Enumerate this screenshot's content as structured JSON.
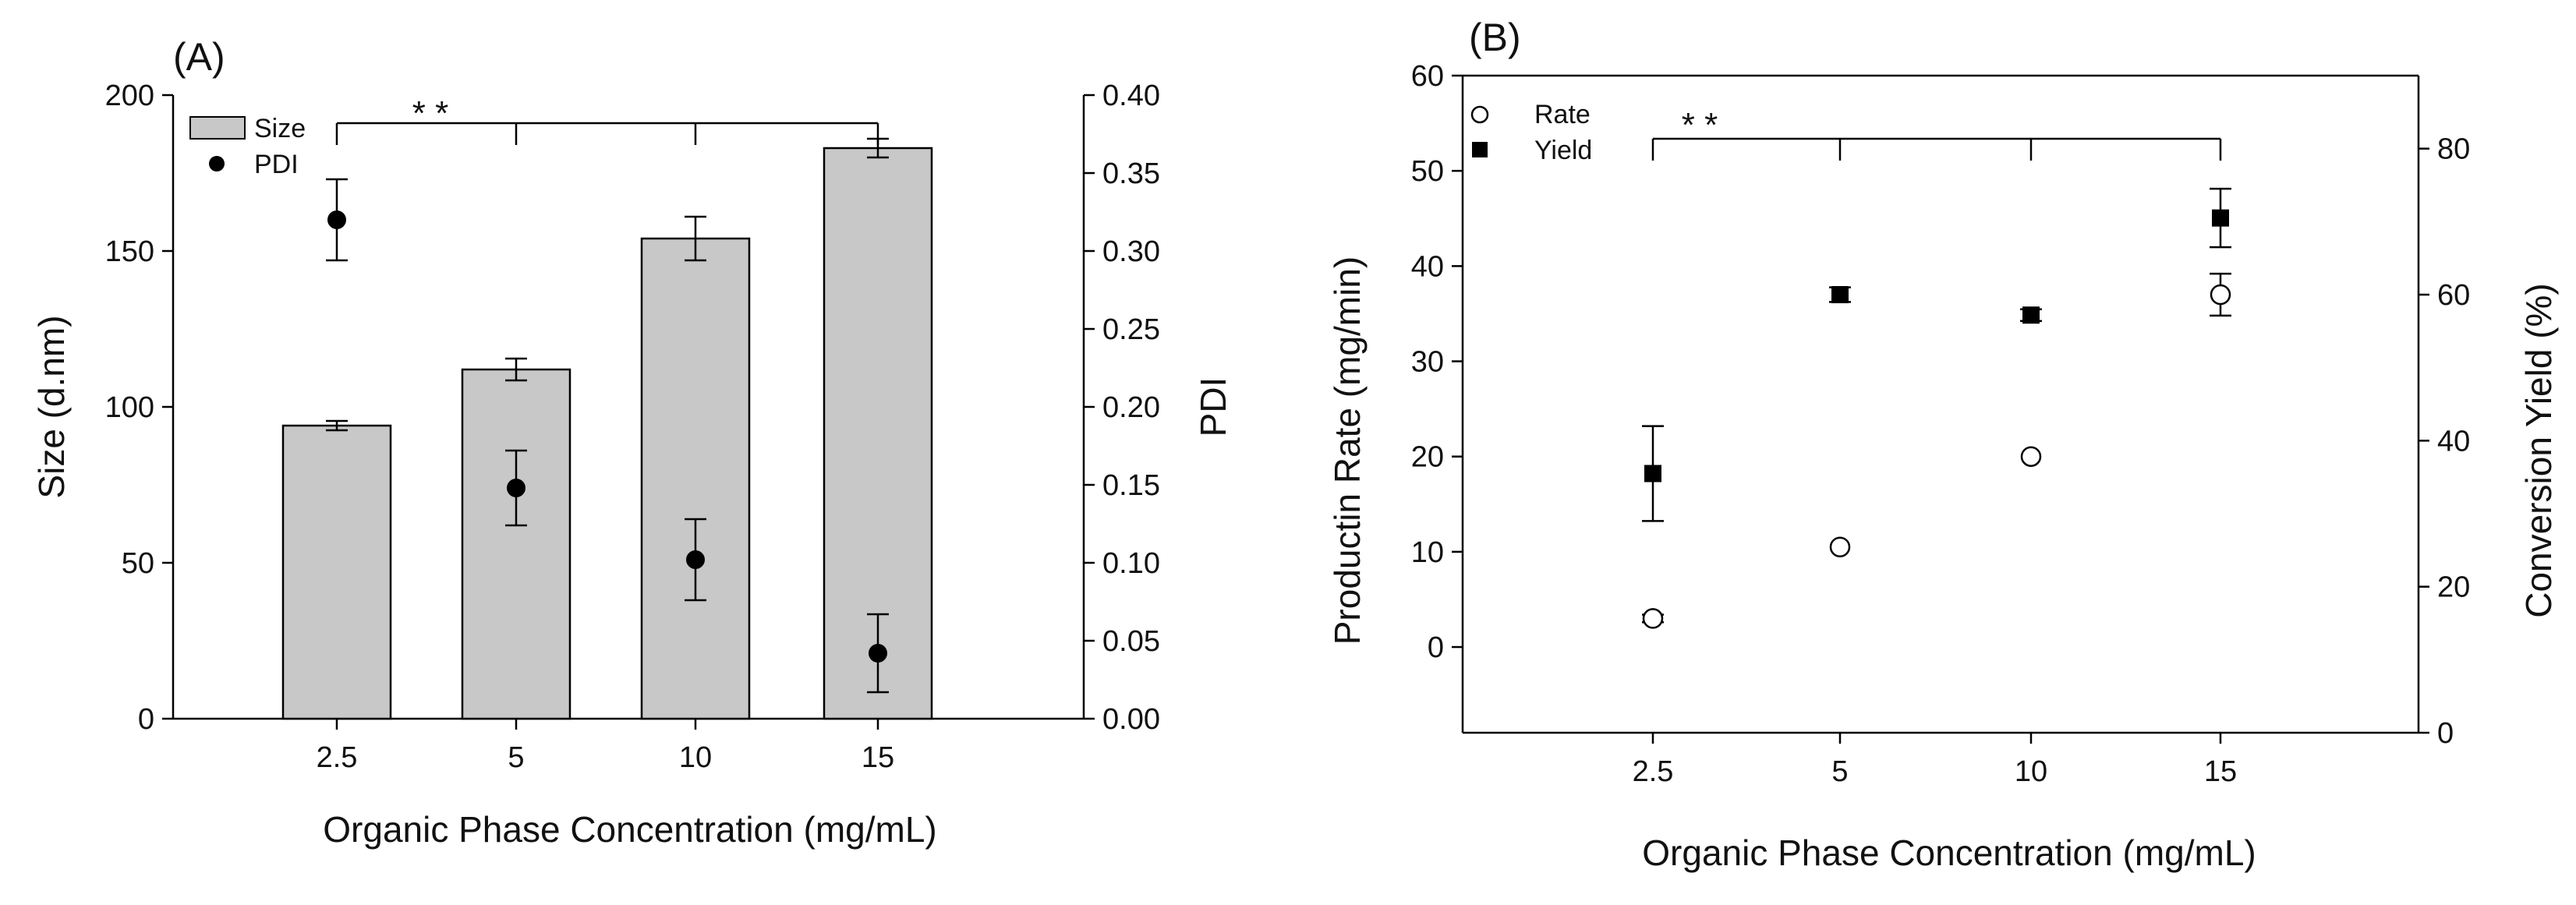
{
  "chart_data": [
    {
      "type": "bar",
      "panel_label": "(A)",
      "categories": [
        "2.5",
        "5",
        "10",
        "15"
      ],
      "xlabel": "Organic Phase Concentration (mg/mL)",
      "ylabel": "Size (d.nm)",
      "y2label": "PDI",
      "ylim": [
        0,
        200
      ],
      "y2lim": [
        0,
        0.4
      ],
      "yticks": [
        "0",
        "50",
        "100",
        "150",
        "200"
      ],
      "y2ticks": [
        "0.00",
        "0.05",
        "0.10",
        "0.15",
        "0.20",
        "0.25",
        "0.30",
        "0.35",
        "0.40"
      ],
      "series": [
        {
          "name": "Size",
          "kind": "bar",
          "axis": "left",
          "values": [
            94,
            112,
            154,
            183
          ],
          "errors": [
            1.5,
            3.5,
            7,
            3
          ],
          "color": "#c8c8c8"
        },
        {
          "name": "PDI",
          "kind": "point",
          "marker": "filled-circle",
          "axis": "right",
          "values": [
            0.32,
            0.148,
            0.102,
            0.042
          ],
          "errors": [
            0.026,
            0.024,
            0.026,
            0.025
          ],
          "color": "#000000"
        }
      ],
      "significance": {
        "text": "* *",
        "from": "2.5",
        "to": "15"
      },
      "legend_position": "top-left",
      "grid": false
    },
    {
      "type": "scatter",
      "panel_label": "(B)",
      "categories": [
        "2.5",
        "5",
        "10",
        "15"
      ],
      "xlabel": "Organic Phase Concentration (mg/mL)",
      "ylabel": "Productin Rate (mg/min)",
      "y2label": "Conversion Yield (%)",
      "ylim": [
        -9,
        60
      ],
      "y2lim": [
        0,
        90
      ],
      "yticks": [
        "0",
        "10",
        "20",
        "30",
        "40",
        "50",
        "60"
      ],
      "y2ticks": [
        "0",
        "20",
        "40",
        "60",
        "80"
      ],
      "series": [
        {
          "name": "Rate",
          "kind": "point",
          "marker": "open-circle",
          "axis": "left",
          "values": [
            3,
            10.5,
            20,
            37
          ],
          "errors": [
            0.4,
            0,
            0,
            2.2
          ],
          "color": "#000000"
        },
        {
          "name": "Yield",
          "kind": "point",
          "marker": "filled-square",
          "axis": "right",
          "values": [
            35.5,
            60,
            57.2,
            70.5
          ],
          "errors": [
            6.5,
            1,
            0.8,
            4
          ],
          "color": "#000000"
        }
      ],
      "significance": {
        "text": "* *",
        "from": "2.5",
        "to": "15"
      },
      "legend_position": "top-left",
      "grid": false
    }
  ]
}
